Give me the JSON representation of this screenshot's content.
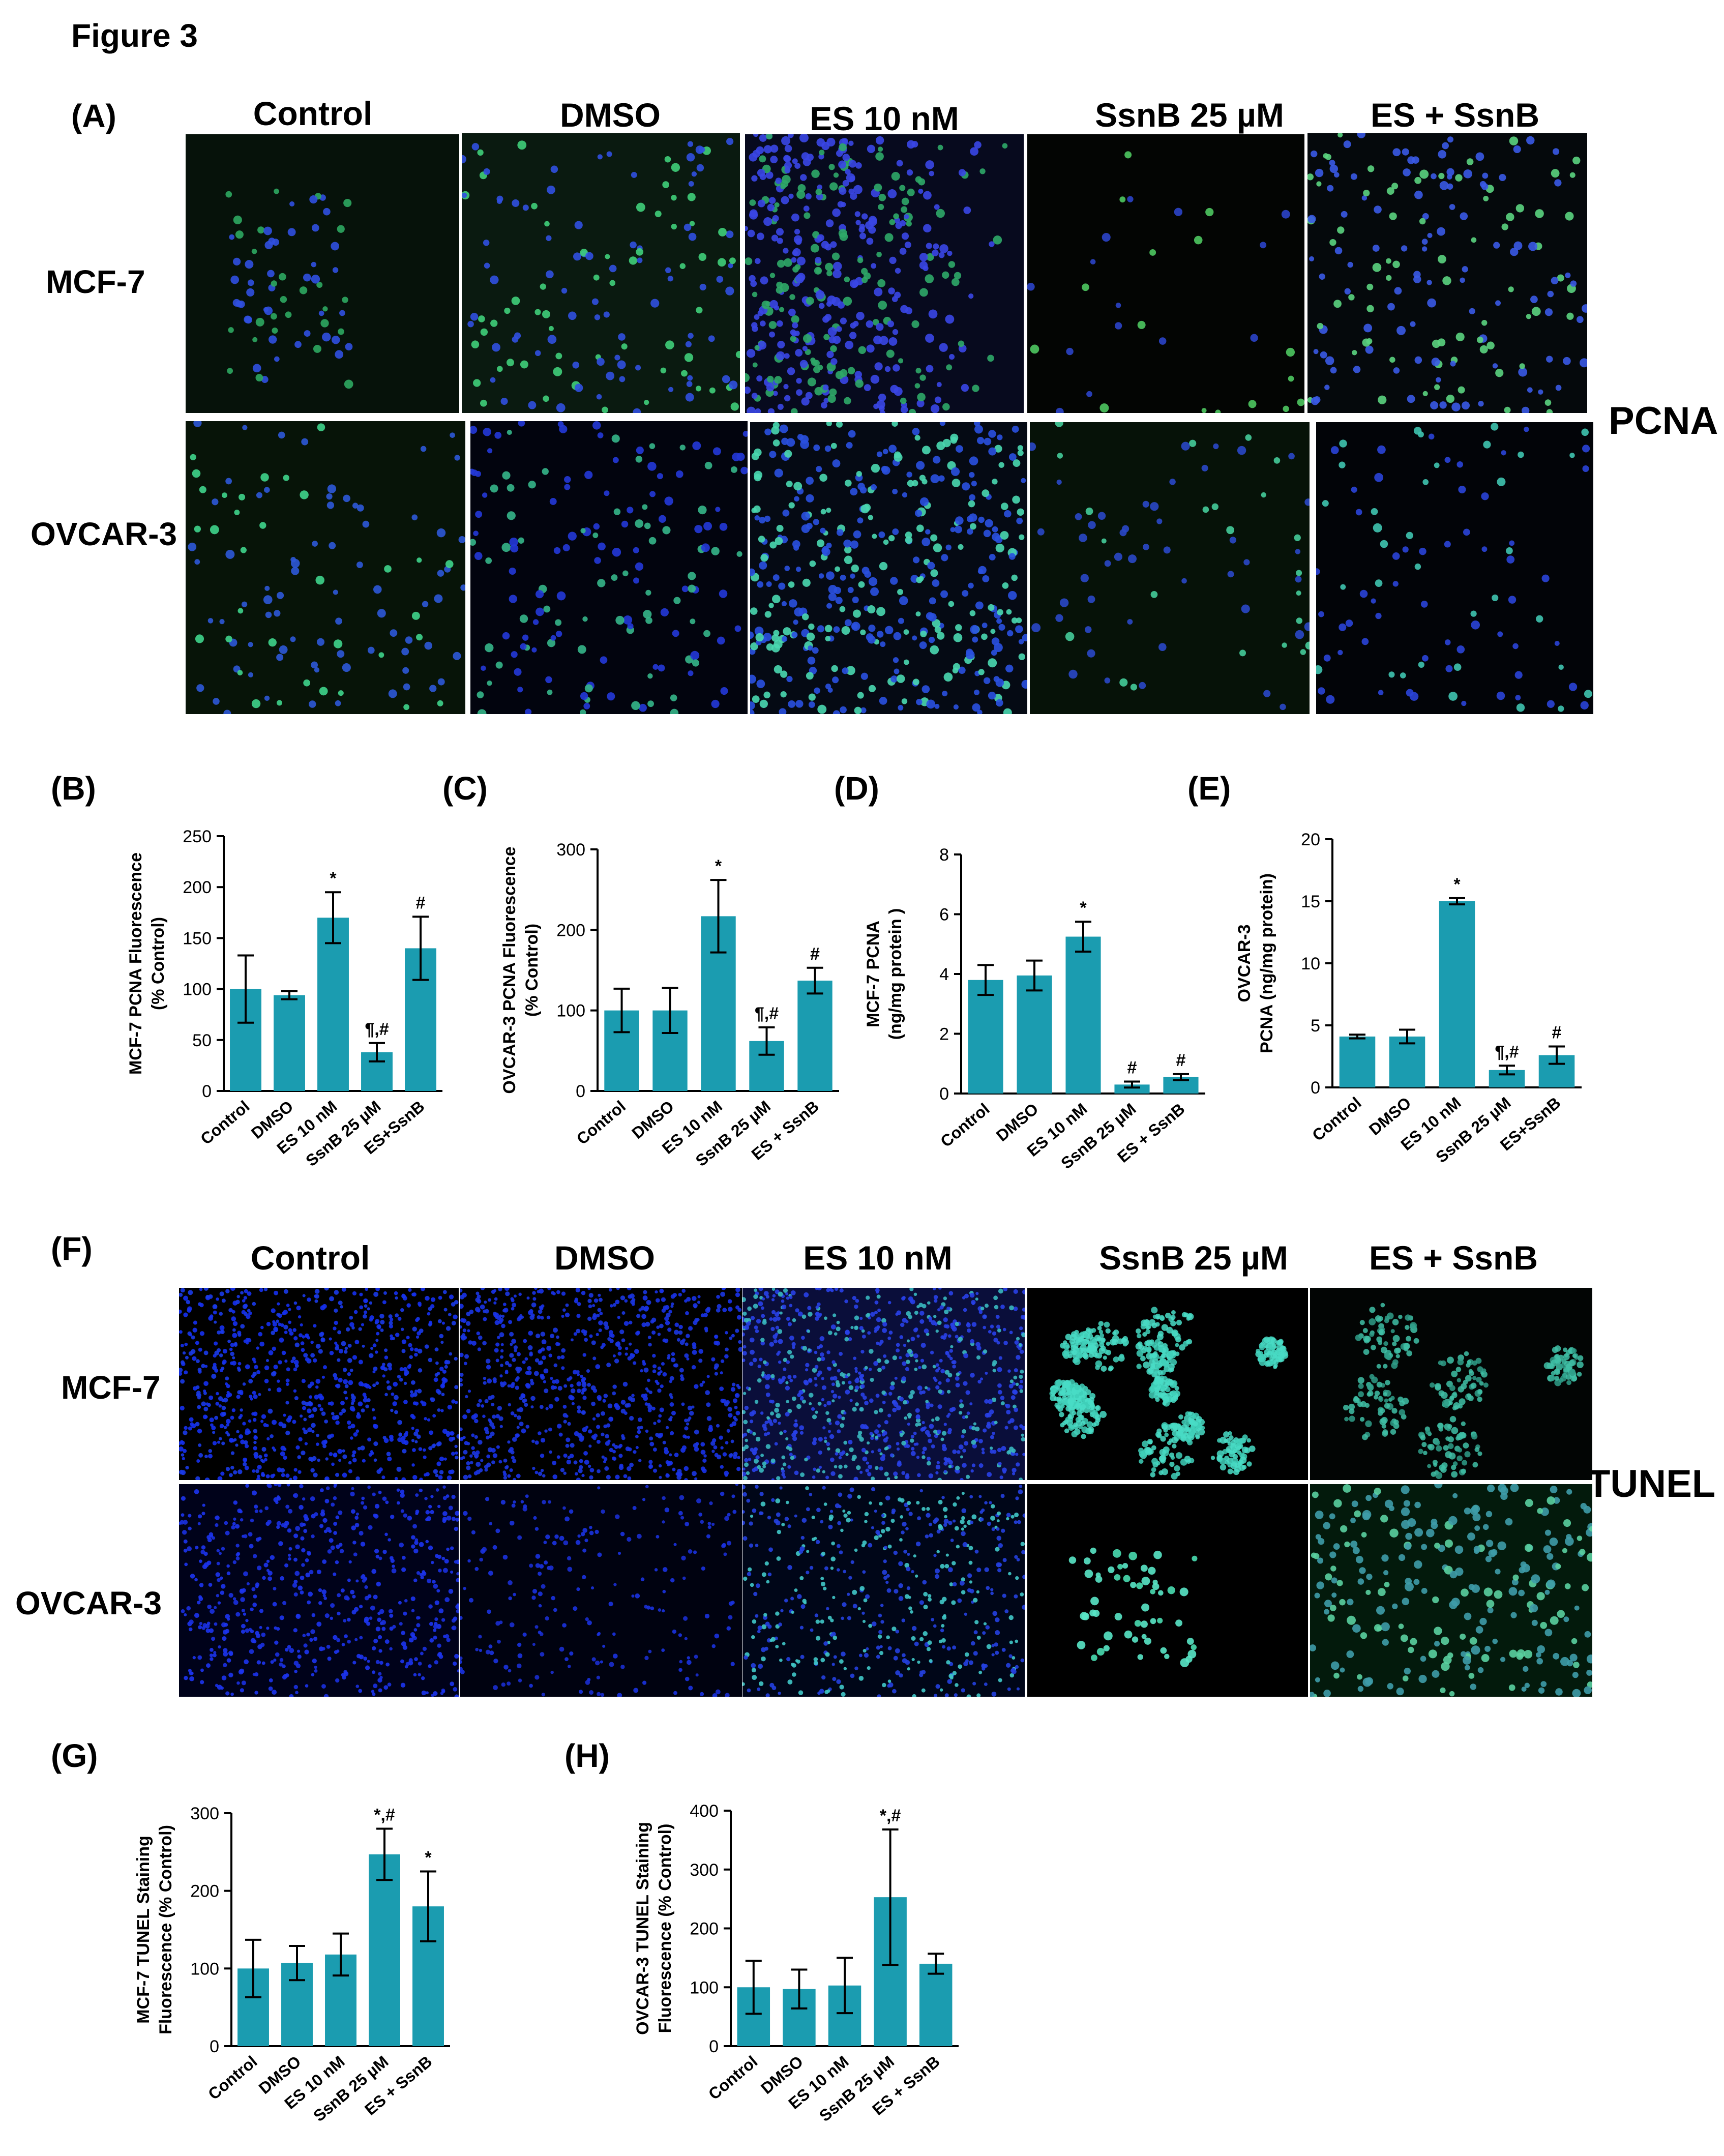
{
  "figure_title": "Figure 3",
  "pcna_section": {
    "panel": "(A)",
    "columns": [
      "Control",
      "DMSO",
      "ES 10 nM",
      "SsnB 25 µM",
      "ES + SsnB"
    ],
    "rows": [
      "MCF-7",
      "OVCAR-3"
    ],
    "side_label": "PCNA"
  },
  "tunel_section": {
    "panel": "(F)",
    "columns": [
      "Control",
      "DMSO",
      "ES 10 nM",
      "SsnB 25 µM",
      "ES + SsnB"
    ],
    "rows": [
      "MCF-7",
      "OVCAR-3"
    ],
    "side_label": "TUNEL"
  },
  "colors": {
    "bar": "#1b9cb0",
    "nuclei": "#2238e6",
    "green_stain": "#3fd48c",
    "cyan_stain": "#49dcc6"
  },
  "chart_data": [
    {
      "panel": "(B)",
      "type": "bar",
      "categories": [
        "Control",
        "DMSO",
        "ES 10 nM",
        "SsnB 25 µM",
        "ES+SsnB"
      ],
      "values": [
        100,
        94,
        170,
        38,
        140
      ],
      "errors": [
        33,
        4,
        25,
        9,
        31
      ],
      "annotations": [
        "",
        "",
        "*",
        "¶,#",
        "#"
      ],
      "ylabel": "MCF-7 PCNA Fluorescence\n(% Control)",
      "ylim": [
        0,
        250
      ],
      "yticks": [
        0,
        50,
        100,
        150,
        200,
        250
      ]
    },
    {
      "panel": "(C)",
      "type": "bar",
      "categories": [
        "Control",
        "DMSO",
        "ES 10 nM",
        "SsnB 25 µM",
        "ES + SsnB"
      ],
      "values": [
        100,
        100,
        217,
        62,
        137
      ],
      "errors": [
        27,
        28,
        45,
        17,
        16
      ],
      "annotations": [
        "",
        "",
        "*",
        "¶,#",
        "#"
      ],
      "ylabel": "OVCAR-3 PCNA Fluorescence\n(% Control)",
      "ylim": [
        0,
        300
      ],
      "yticks": [
        0,
        100,
        200,
        300
      ]
    },
    {
      "panel": "(D)",
      "type": "bar",
      "categories": [
        "Control",
        "DMSO",
        "ES 10 nM",
        "SsnB 25 µM",
        "ES + SsnB"
      ],
      "values": [
        3.8,
        3.95,
        5.25,
        0.3,
        0.55
      ],
      "errors": [
        0.5,
        0.5,
        0.5,
        0.1,
        0.1
      ],
      "annotations": [
        "",
        "",
        "*",
        "#",
        "#"
      ],
      "ylabel": "MCF-7 PCNA\n(ng/mg protein )",
      "ylim": [
        0,
        8
      ],
      "yticks": [
        0,
        2,
        4,
        6,
        8
      ]
    },
    {
      "panel": "(E)",
      "type": "bar",
      "categories": [
        "Control",
        "DMSO",
        "ES 10 nM",
        "SsnB 25 µM",
        "ES+SsnB"
      ],
      "values": [
        4.1,
        4.1,
        15.0,
        1.4,
        2.6
      ],
      "errors": [
        0.15,
        0.55,
        0.25,
        0.35,
        0.7
      ],
      "annotations": [
        "",
        "",
        "*",
        "¶,#",
        "#"
      ],
      "ylabel": "OVCAR-3\nPCNA (ng/mg protein)",
      "ylim": [
        0,
        20
      ],
      "yticks": [
        0,
        5,
        10,
        15,
        20
      ]
    },
    {
      "panel": "(G)",
      "type": "bar",
      "categories": [
        "Control",
        "DMSO",
        "ES 10 nM",
        "SsnB 25 µM",
        "ES + SsnB"
      ],
      "values": [
        100,
        107,
        118,
        247,
        180
      ],
      "errors": [
        37,
        22,
        27,
        33,
        45
      ],
      "annotations": [
        "",
        "",
        "",
        "*,#",
        "*"
      ],
      "ylabel": "MCF-7 TUNEL Staining\nFluorescence (% Control)",
      "ylim": [
        0,
        300
      ],
      "yticks": [
        0,
        100,
        200,
        300
      ]
    },
    {
      "panel": "(H)",
      "type": "bar",
      "categories": [
        "Control",
        "DMSO",
        "ES 10 nM",
        "SsnB 25 µM",
        "ES + SsnB"
      ],
      "values": [
        100,
        97,
        103,
        253,
        140
      ],
      "errors": [
        45,
        33,
        47,
        115,
        17
      ],
      "annotations": [
        "",
        "",
        "",
        "*,#",
        ""
      ],
      "ylabel": "OVCAR-3 TUNEL Staining\nFluorescence (% Control)",
      "ylim": [
        0,
        400
      ],
      "yticks": [
        0,
        100,
        200,
        300,
        400
      ]
    }
  ]
}
